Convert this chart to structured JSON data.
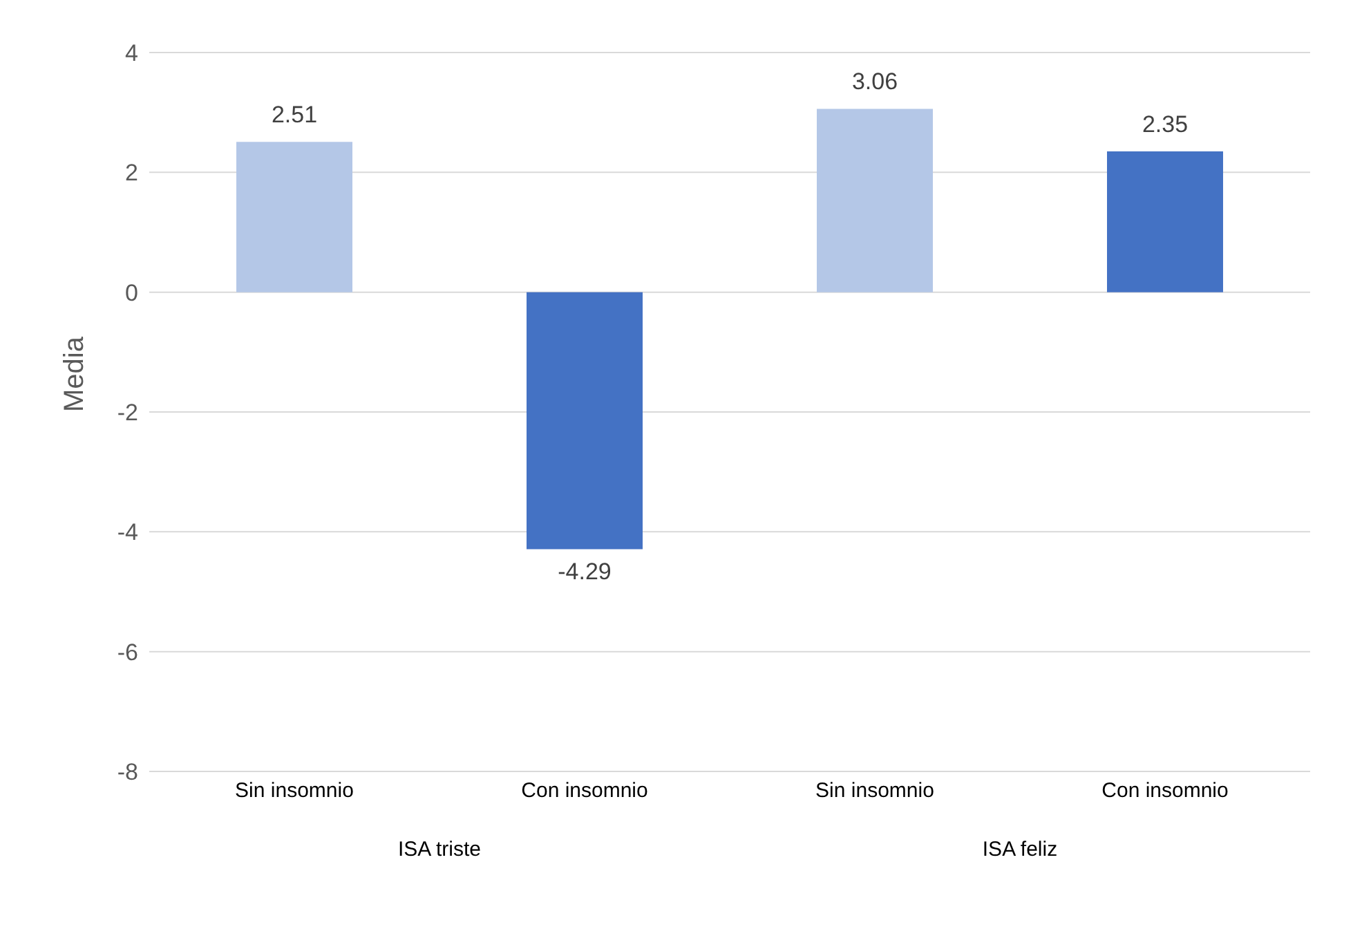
{
  "chart_data": {
    "type": "bar",
    "ylabel": "Media",
    "categories": [
      "Sin insomnio",
      "Con insomnio",
      "Sin insomnio",
      "Con insomnio"
    ],
    "values": [
      2.51,
      -4.29,
      3.06,
      2.35
    ],
    "colors": [
      "#b4c7e7",
      "#4472c4",
      "#b4c7e7",
      "#4472c4"
    ],
    "data_labels": true,
    "ylim": [
      -8,
      4
    ],
    "yticks": [
      -8,
      -6,
      -4,
      -2,
      0,
      2,
      4
    ],
    "grid": "y",
    "annotations": [
      "ISA triste",
      "ISA feliz"
    ]
  }
}
